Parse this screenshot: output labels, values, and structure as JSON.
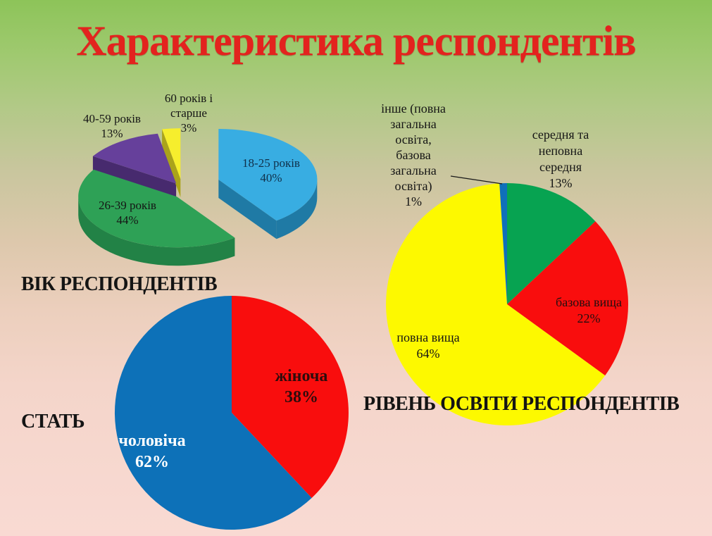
{
  "slide": {
    "title": "Характеристика респондентів"
  },
  "chart_data": [
    {
      "type": "pie",
      "variant": "3d-exploded",
      "title": "ВІК РЕСПОНДЕНТІВ",
      "unit": "%",
      "start_angle_deg": 0,
      "direction": "clockwise",
      "legend": "none",
      "categories": [
        "18-25 років",
        "26-39 років",
        "40-59 років",
        "60 років і старше"
      ],
      "values": [
        40,
        44,
        13,
        3
      ],
      "colors": [
        "#38ade2",
        "#2ea156",
        "#66409b",
        "#f6ee2d"
      ],
      "side_colors": [
        "#1f7aa5",
        "#228246",
        "#472a6e",
        "#aaa31a"
      ],
      "labels": [
        "18-25 років\n40%",
        "26-39 років\n44%",
        "40-59 років\n13%",
        "60 років і\nстарше\n3%"
      ]
    },
    {
      "type": "pie",
      "variant": "flat",
      "title": "РІВЕНЬ ОСВІТИ РЕСПОНДЕНТІВ",
      "unit": "%",
      "start_angle_deg": 0,
      "direction": "clockwise",
      "legend": "none",
      "categories": [
        "середня та неповна середня",
        "базова вища",
        "повна вища",
        "інше (повна загальна освіта, базова загальна освіта)"
      ],
      "values": [
        13,
        22,
        64,
        1
      ],
      "colors": [
        "#07a351",
        "#f90d0d",
        "#fdf900",
        "#0f70ba"
      ],
      "labels": [
        "середня та\nнеповна\nсередня\n13%",
        "базова вища\n22%",
        "повна вища\n64%",
        "інше (повна\nзагальна\nосвіта,\nбазова\nзагальна\nосвіта)\n1%"
      ]
    },
    {
      "type": "pie",
      "variant": "flat",
      "title": "СТАТЬ",
      "unit": "%",
      "start_angle_deg": 0,
      "direction": "clockwise",
      "legend": "none",
      "categories": [
        "жіноча",
        "чоловіча"
      ],
      "values": [
        38,
        62
      ],
      "colors": [
        "#f90d0d",
        "#0d71b8"
      ],
      "labels": [
        "жіноча\n38%",
        "чоловіча\n62%"
      ]
    }
  ]
}
